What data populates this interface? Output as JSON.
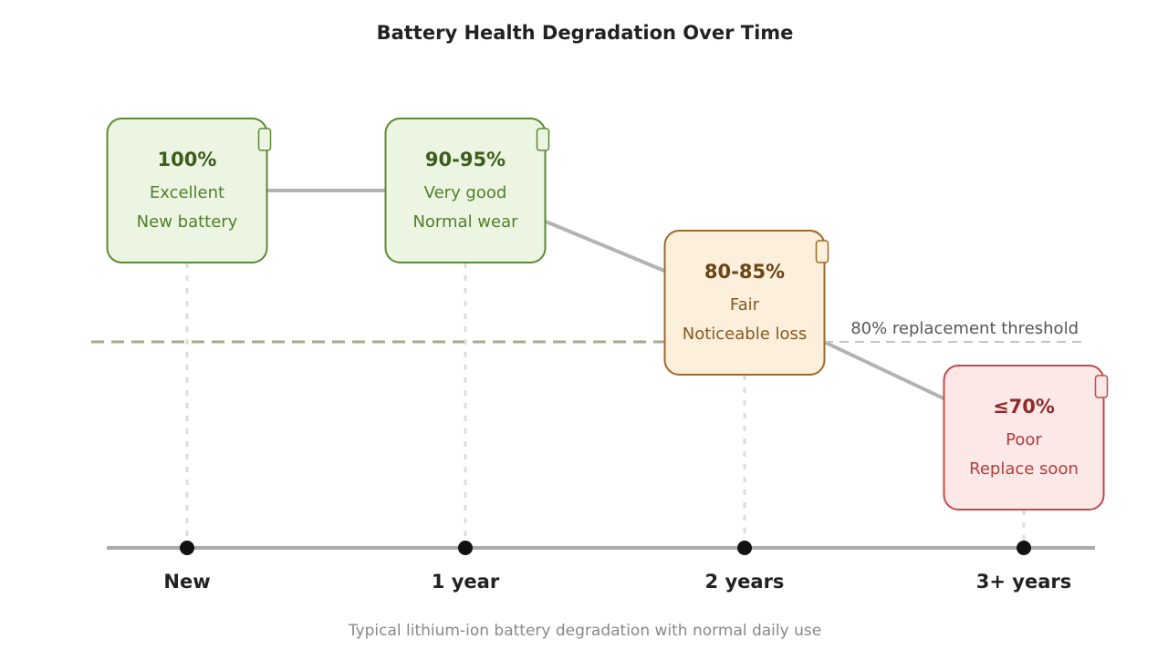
{
  "title": "Battery Health Degradation Over Time",
  "caption": "Typical lithium-ion battery degradation with normal daily use",
  "threshold": {
    "label": "80% replacement threshold",
    "value": 80
  },
  "stages": [
    {
      "timeline_label": "New",
      "percent": "100%",
      "rating": "Excellent",
      "note": "New battery",
      "colors": {
        "fill": "#ecf5e1",
        "border": "#5a8a32",
        "title": "#3b5e1c",
        "text": "#4f7f2a"
      }
    },
    {
      "timeline_label": "1 year",
      "percent": "90-95%",
      "rating": "Very good",
      "note": "Normal wear",
      "colors": {
        "fill": "#ecf5e1",
        "border": "#5a8a32",
        "title": "#3b5e1c",
        "text": "#4f7f2a"
      }
    },
    {
      "timeline_label": "2 years",
      "percent": "80-85%",
      "rating": "Fair",
      "note": "Noticeable loss",
      "colors": {
        "fill": "#fcefdc",
        "border": "#9a6a2a",
        "title": "#6b4514",
        "text": "#86591f"
      }
    },
    {
      "timeline_label": "3+ years",
      "percent": "≤70%",
      "rating": "Poor",
      "note": "Replace soon",
      "colors": {
        "fill": "#fde8e8",
        "border": "#c04a4a",
        "title": "#8e2a2a",
        "text": "#b03c3c"
      }
    }
  ]
}
